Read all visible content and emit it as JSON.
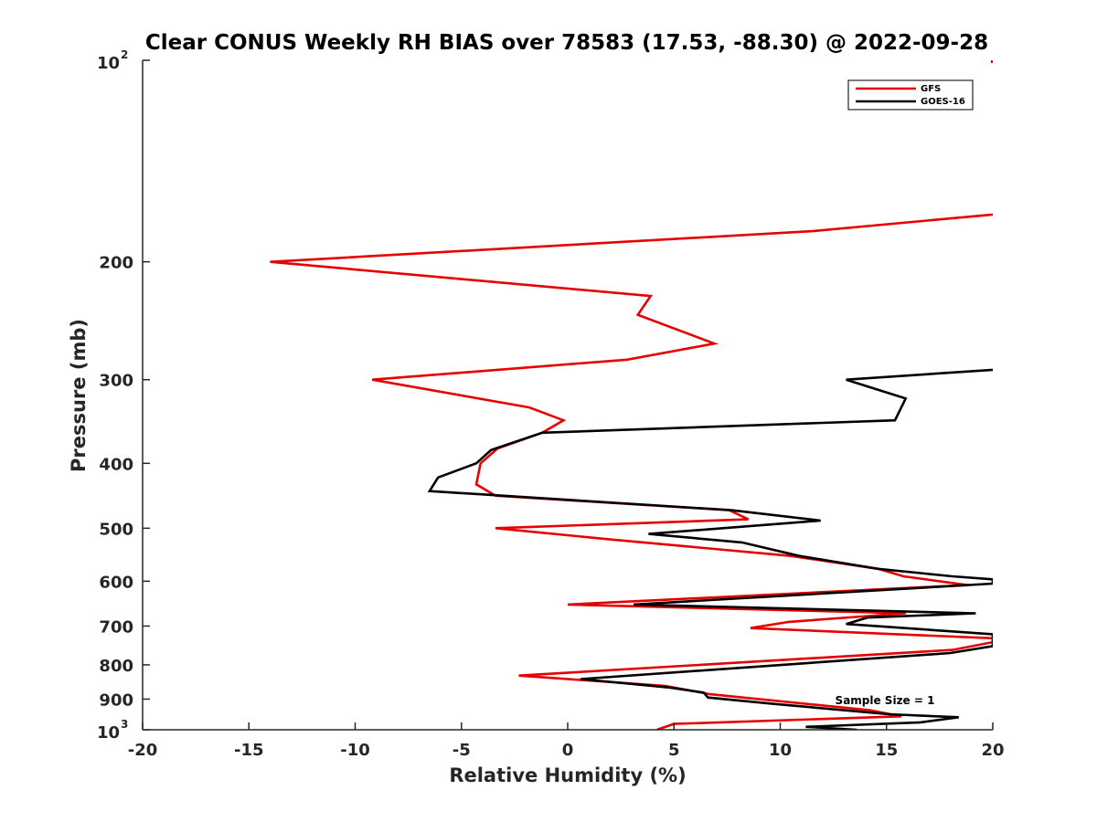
{
  "chart_data": {
    "type": "line",
    "title": "Clear CONUS Weekly RH BIAS over 78583 (17.53, -88.30) @ 2022-09-28",
    "xlabel": "Relative Humidity (%)",
    "ylabel": "Pressure (mb)",
    "xlim": [
      -20,
      20
    ],
    "ylim": [
      100,
      1000
    ],
    "y_scale": "log",
    "y_reversed": true,
    "grid": false,
    "legend_position": "top-right",
    "x_ticks": [
      "-20",
      "-15",
      "-10",
      "-5",
      "0",
      "5",
      "10",
      "15",
      "20"
    ],
    "x_tick_values": [
      -20,
      -15,
      -10,
      -5,
      0,
      5,
      10,
      15,
      20
    ],
    "y_ticks": [
      {
        "value": 100,
        "base": "10",
        "exp": "2"
      },
      {
        "value": 200,
        "label": "200"
      },
      {
        "value": 300,
        "label": "300"
      },
      {
        "value": 400,
        "label": "400"
      },
      {
        "value": 500,
        "label": "500"
      },
      {
        "value": 600,
        "label": "600"
      },
      {
        "value": 700,
        "label": "700"
      },
      {
        "value": 800,
        "label": "800"
      },
      {
        "value": 900,
        "label": "900"
      },
      {
        "value": 1000,
        "base": "10",
        "exp": "3"
      }
    ],
    "annotation": "Sample Size = 1",
    "series": [
      {
        "name": "GFS",
        "color": "#e60000",
        "points": [
          [
            20,
            170
          ],
          [
            11.5,
            180
          ],
          [
            -14,
            200
          ],
          [
            3.9,
            225
          ],
          [
            3.3,
            240
          ],
          [
            6.9,
            265
          ],
          [
            2.8,
            280
          ],
          [
            -9.2,
            300
          ],
          [
            -1.8,
            330
          ],
          [
            -0.2,
            345
          ],
          [
            -1.2,
            360
          ],
          [
            -3.3,
            380
          ],
          [
            -4.1,
            400
          ],
          [
            -4.3,
            430
          ],
          [
            -3.4,
            447
          ],
          [
            7.6,
            470
          ],
          [
            8.5,
            485
          ],
          [
            -3.4,
            500
          ],
          [
            2.1,
            520
          ],
          [
            10.5,
            550
          ],
          [
            14.6,
            575
          ],
          [
            15.8,
            590
          ],
          [
            18.8,
            608
          ],
          [
            0,
            650
          ],
          [
            15.9,
            670
          ],
          [
            10.4,
            690
          ],
          [
            8.6,
            705
          ],
          [
            20,
            730
          ],
          [
            20,
            740
          ],
          [
            18.1,
            760
          ],
          [
            -2.3,
            830
          ],
          [
            4.6,
            860
          ],
          [
            6.7,
            885
          ],
          [
            14.2,
            935
          ],
          [
            15.7,
            955
          ],
          [
            5,
            980
          ],
          [
            4.2,
            1000
          ]
        ]
      },
      {
        "name": "GOES-16",
        "color": "#000000",
        "points": [
          [
            20,
            290
          ],
          [
            13.1,
            300
          ],
          [
            15.9,
            320
          ],
          [
            15.4,
            345
          ],
          [
            -1.2,
            360
          ],
          [
            -3.6,
            382
          ],
          [
            -4.3,
            400
          ],
          [
            -6.1,
            420
          ],
          [
            -6.5,
            440
          ],
          [
            7.7,
            470
          ],
          [
            11.9,
            487
          ],
          [
            3.8,
            510
          ],
          [
            8.2,
            525
          ],
          [
            10.9,
            550
          ],
          [
            14.6,
            575
          ],
          [
            18.1,
            590
          ],
          [
            20,
            596
          ],
          [
            20,
            605
          ],
          [
            3.1,
            650
          ],
          [
            19.2,
            670
          ],
          [
            14.1,
            680
          ],
          [
            13.1,
            695
          ],
          [
            20,
            720
          ],
          [
            20,
            750
          ],
          [
            18,
            768
          ],
          [
            0.6,
            840
          ],
          [
            4.8,
            865
          ],
          [
            6.4,
            880
          ],
          [
            6.6,
            895
          ],
          [
            9.7,
            915
          ],
          [
            15.1,
            948
          ],
          [
            18.4,
            958
          ],
          [
            16.6,
            975
          ],
          [
            11.2,
            990
          ],
          [
            13.6,
            1000
          ]
        ]
      }
    ]
  }
}
